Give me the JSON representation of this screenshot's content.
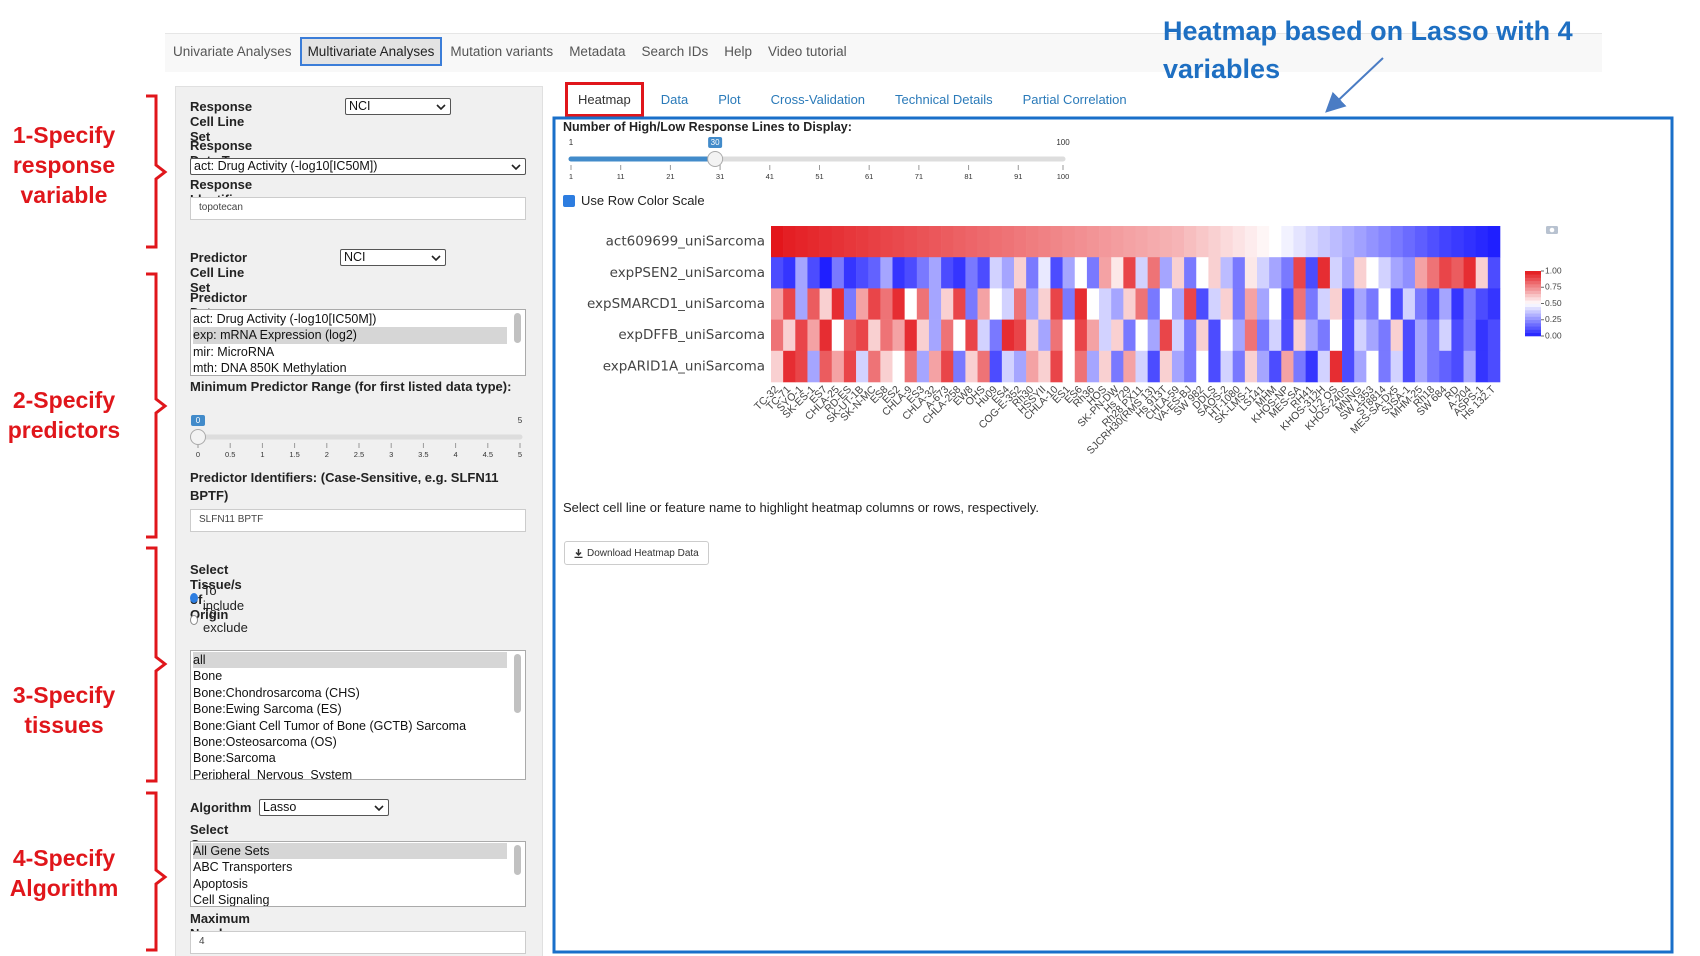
{
  "annotation_title": "Heatmap based on Lasso with 4 variables",
  "annotations": [
    "1-Specify response variable",
    "2-Specify predictors",
    "3-Specify tissues",
    "4-Specify Algorithm"
  ],
  "nav_tabs": [
    "Univariate Analyses",
    "Multivariate Analyses",
    "Mutation variants",
    "Metadata",
    "Search IDs",
    "Help",
    "Video tutorial"
  ],
  "nav_active": 1,
  "left_panel": {
    "response_cell_line_set": {
      "label": "Response Cell Line Set",
      "value": "NCI"
    },
    "response_data_type": {
      "label": "Response Data Type",
      "value": "act: Drug Activity (-log10[IC50M])"
    },
    "response_identifier": {
      "label": "Response Identifier:",
      "value": "topotecan"
    },
    "predictor_cell_line_set": {
      "label": "Predictor Cell Line Set",
      "value": "NCI"
    },
    "predictor_data_types": {
      "label": "Predictor Data Type/s",
      "options": [
        "act: Drug Activity (-log10[IC50M])",
        "exp: mRNA Expression (log2)",
        "mir: MicroRNA",
        "mth: DNA 850K Methylation"
      ],
      "selected": 1
    },
    "min_predictor_range": {
      "label": "Minimum Predictor Range (for first listed data type):",
      "min": 0,
      "max": 5,
      "value": 0,
      "ticks": [
        0,
        0.5,
        1,
        1.5,
        2,
        2.5,
        3,
        3.5,
        4,
        4.5,
        5
      ]
    },
    "predictor_identifiers": {
      "label": "Predictor Identifiers: (Case-Sensitive, e.g. SLFN11 BPTF)",
      "value": "SLFN11 BPTF"
    },
    "tissues": {
      "label": "Select Tissue/s of Origin",
      "radio": [
        "To include",
        "To exclude"
      ],
      "radio_selected": 0,
      "options": [
        "all",
        "Bone",
        "Bone:Chondrosarcoma (CHS)",
        "Bone:Ewing Sarcoma (ES)",
        "Bone:Giant Cell Tumor of Bone (GCTB) Sarcoma",
        "Bone:Osteosarcoma (OS)",
        "Bone:Sarcoma",
        "Peripheral_Nervous_System"
      ],
      "selected": 0
    },
    "algorithm": {
      "label": "Algorithm",
      "value": "Lasso"
    },
    "gene_sets": {
      "label": "Select Gene Sets",
      "options": [
        "All Gene Sets",
        "ABC Transporters",
        "Apoptosis",
        "Cell Signaling"
      ],
      "selected": 0
    },
    "max_predictors": {
      "label": "Maximum Number of Predictors",
      "value": "4"
    }
  },
  "result_tabs": [
    "Heatmap",
    "Data",
    "Plot",
    "Cross-Validation",
    "Technical Details",
    "Partial Correlation"
  ],
  "result_active": 0,
  "lines_slider": {
    "label": "Number of High/Low Response Lines to Display:",
    "min": 1,
    "max": 100,
    "value": 30,
    "ticks": [
      1,
      11,
      21,
      31,
      41,
      51,
      61,
      71,
      81,
      91,
      100
    ]
  },
  "row_color_scale": {
    "label": "Use Row Color Scale",
    "checked": true
  },
  "heatmap": {
    "type": "heatmap",
    "rows": [
      "act609699_uniSarcoma",
      "expPSEN2_uniSarcoma",
      "expSMARCD1_uniSarcoma",
      "expDFFB_uniSarcoma",
      "expARID1A_uniSarcoma"
    ],
    "columns": [
      "TC-32",
      "TC-71",
      "SYO-1",
      "SK-ES-1",
      "ES7",
      "CHLA-25",
      "RD-ES",
      "SK-UT-1B",
      "SK-N-MC",
      "ES8",
      "ES2",
      "CHLA-9",
      "ES3",
      "CHLA-32",
      "A-673",
      "CHLA-258",
      "EW8",
      "OHS",
      "Hu09",
      "ES4",
      "COG-E-352",
      "Rh30",
      "HSSYII",
      "CHLA-10",
      "ES1",
      "ES6",
      "Rh36",
      "HOS",
      "SK-PN-DW",
      "Hs 729",
      "Rh28 PX11",
      "SJCRH30(RMS 13)",
      "Hs 913T",
      "CHLA-59",
      "VA-ES-BJ",
      "SW 982",
      "DDLS",
      "SAOS-2",
      "HT-1080",
      "SK-LMS-1",
      "LS141",
      "MHM",
      "KHOS-NP",
      "MES-SA",
      "RH41",
      "KHOS-312H",
      "U-2 OS",
      "KHOS-240S",
      "MNNG",
      "SW 1353",
      "ST8814",
      "MES-SA-Dx5",
      "SJSA-1",
      "MHM-25",
      "Rh18",
      "SW 684",
      "RD",
      "A-204",
      "ASPS-1",
      "Hs 132.T"
    ],
    "values": [
      [
        1,
        0.98,
        0.97,
        0.96,
        0.95,
        0.94,
        0.93,
        0.92,
        0.91,
        0.9,
        0.89,
        0.88,
        0.87,
        0.86,
        0.85,
        0.84,
        0.83,
        0.82,
        0.81,
        0.8,
        0.79,
        0.78,
        0.77,
        0.76,
        0.75,
        0.74,
        0.73,
        0.72,
        0.71,
        0.7,
        0.69,
        0.68,
        0.67,
        0.66,
        0.64,
        0.62,
        0.6,
        0.58,
        0.56,
        0.54,
        0.52,
        0.5,
        0.47,
        0.44,
        0.41,
        0.38,
        0.35,
        0.32,
        0.29,
        0.26,
        0.23,
        0.2,
        0.17,
        0.14,
        0.11,
        0.08,
        0.06,
        0.04,
        0.02,
        0
      ],
      [
        0.1,
        0.05,
        0.3,
        0.1,
        0,
        0.2,
        0.05,
        0.1,
        0.15,
        0.3,
        0.05,
        0.1,
        0.2,
        0.3,
        0.1,
        0.05,
        0.2,
        0.1,
        0.4,
        0.3,
        0.6,
        0.2,
        0.45,
        0.1,
        0.3,
        0.5,
        0.2,
        0.7,
        0.55,
        0.9,
        0.4,
        0.8,
        0.3,
        0.6,
        0.2,
        0.5,
        0.6,
        0.35,
        0.2,
        0.55,
        0.4,
        0.3,
        0.2,
        0.9,
        0.1,
        0.95,
        0.4,
        0.3,
        0.6,
        0.5,
        0.4,
        0.3,
        0.25,
        0.7,
        0.8,
        0.9,
        0.85,
        0.95,
        0.6,
        0.1
      ],
      [
        0.7,
        0.9,
        0.3,
        0.85,
        0.6,
        0.95,
        0.2,
        0.7,
        0.9,
        0.8,
        0.95,
        0.5,
        0.8,
        0.3,
        0.6,
        0.9,
        0.2,
        0.7,
        0.5,
        0.4,
        0.8,
        0.3,
        0.6,
        0.9,
        0.2,
        0.95,
        0.5,
        0.4,
        0.3,
        0.6,
        0.8,
        0.2,
        0.5,
        0.3,
        0.9,
        0.1,
        0.4,
        0.6,
        0.2,
        0.7,
        0.3,
        0.5,
        0.1,
        0.8,
        0.2,
        0.4,
        0.6,
        0.1,
        0.3,
        0.2,
        0.5,
        0.1,
        0.4,
        0.2,
        0.1,
        0.3,
        0.05,
        0.2,
        0.1,
        0.05
      ],
      [
        0.8,
        0.6,
        0.9,
        0.7,
        0.95,
        0.5,
        0.85,
        0.9,
        0.6,
        0.8,
        0.7,
        0.95,
        0.6,
        0.3,
        0.8,
        0.5,
        0.9,
        0.4,
        0.2,
        0.95,
        0.9,
        0.6,
        0.3,
        0.8,
        0.5,
        0.9,
        0.7,
        0.4,
        0.6,
        0.2,
        0.5,
        0.3,
        0.9,
        0.4,
        0.2,
        0.6,
        0.1,
        0.5,
        0.3,
        0.8,
        0.2,
        0.4,
        0.1,
        0.6,
        0.3,
        0.2,
        0.5,
        0.1,
        0.4,
        0.3,
        0.2,
        0.6,
        0.1,
        0.3,
        0.2,
        0.4,
        0.1,
        0.2,
        0.05,
        0.1
      ],
      [
        0.6,
        0.95,
        0.9,
        0.3,
        0.85,
        0.7,
        0.9,
        0.4,
        0.8,
        0.6,
        0.5,
        0.8,
        0.3,
        0.7,
        0.9,
        0.2,
        0.6,
        0.8,
        0.1,
        0.4,
        0.3,
        0.7,
        0.6,
        0.9,
        0.5,
        0.8,
        0.3,
        0.6,
        0.2,
        0.7,
        0.4,
        0.1,
        0.6,
        0.3,
        0.2,
        0.5,
        0.1,
        0.4,
        0.2,
        0.6,
        0.3,
        0.1,
        0.7,
        0.2,
        0.05,
        0.4,
        0.95,
        0.1,
        0.3,
        0.5,
        0.2,
        0.4,
        0.1,
        0.3,
        0.2,
        0.15,
        0.1,
        0.3,
        0.05,
        0.1
      ]
    ],
    "zlim": [
      0,
      1
    ],
    "colorbar_ticks": [
      {
        "value": 1,
        "label": "1.00"
      },
      {
        "value": 0.75,
        "label": "0.75"
      },
      {
        "value": 0.5,
        "label": "0.50"
      },
      {
        "value": 0.25,
        "label": "0.25"
      },
      {
        "value": 0,
        "label": "0.00"
      }
    ],
    "colors": {
      "low": "#1f1fff",
      "mid": "#ffffff",
      "high": "#e3161b"
    }
  },
  "hint": "Select cell line or feature name to highlight heatmap columns or rows, respectively.",
  "download_button": "Download Heatmap Data"
}
